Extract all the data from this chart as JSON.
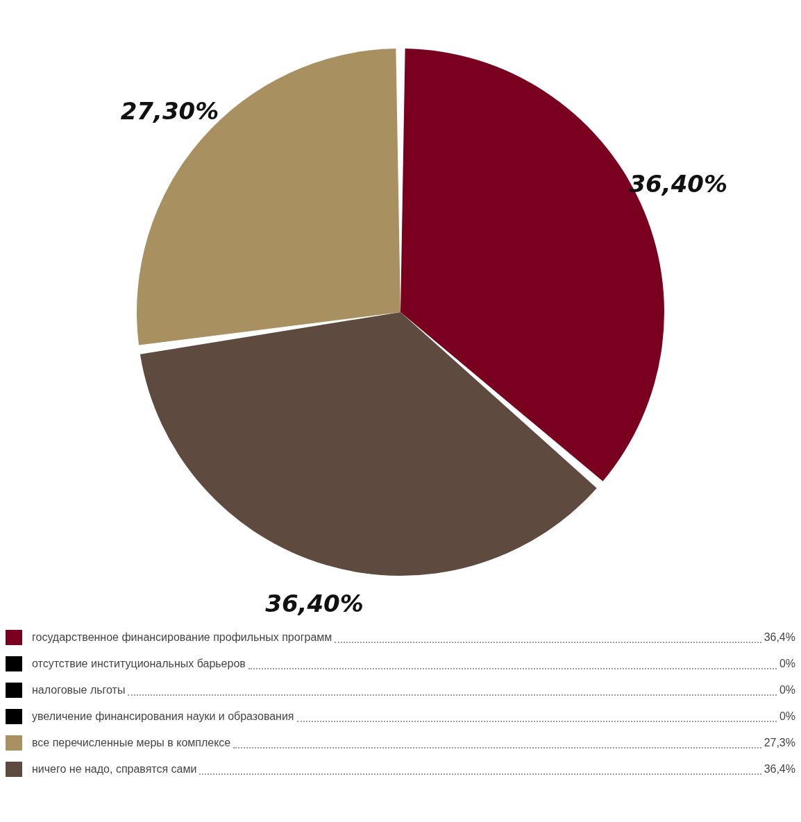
{
  "chart_data": {
    "type": "pie",
    "categories": [
      "государственное финансирование профильных программ",
      "отсутствие институциональных барьеров",
      "налоговые льготы",
      "увеличение финансирования науки и образования",
      "все перечисленные меры в комплексе",
      "ничего не надо, справятся сами"
    ],
    "values": [
      36.4,
      0,
      0,
      0,
      27.3,
      36.4
    ],
    "colors": [
      "#7a0020",
      "#000000",
      "#000000",
      "#000000",
      "#a89060",
      "#5e4a3e"
    ],
    "value_labels": [
      "36,40%",
      null,
      null,
      null,
      "27,30%",
      "36,40%"
    ],
    "annotations": [
      "36,4%",
      "0%",
      "0%",
      "0%",
      "27,3%",
      "36,4%"
    ],
    "legend": "bottom"
  }
}
